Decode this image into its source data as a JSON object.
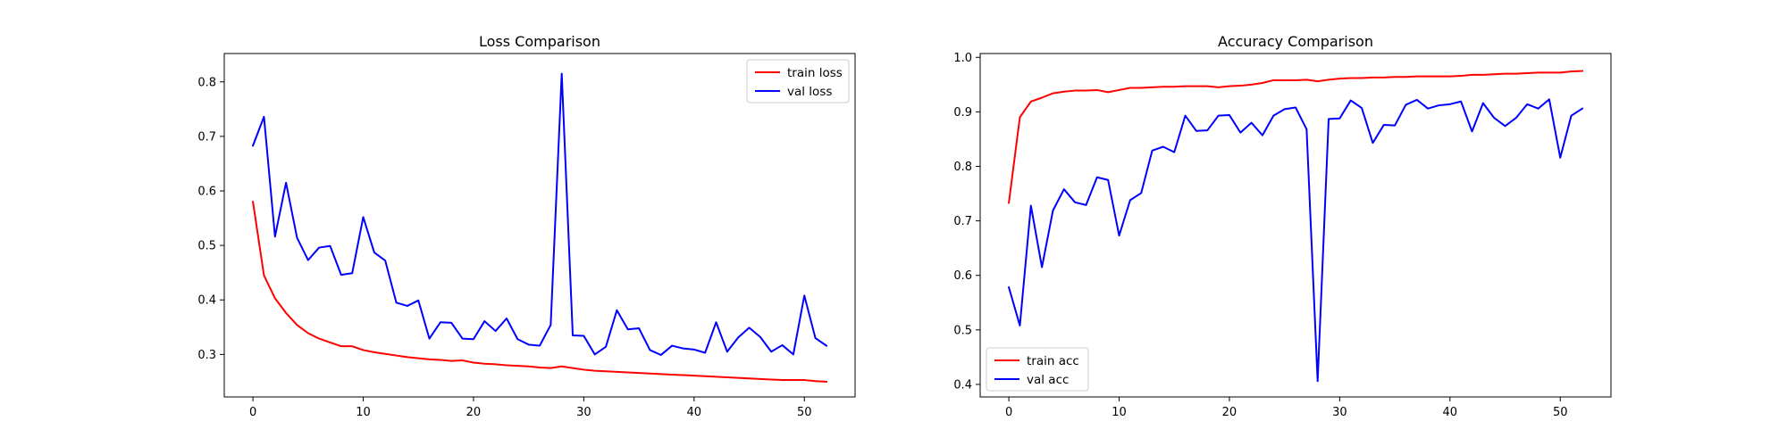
{
  "chart_data": [
    {
      "type": "line",
      "title": "Loss Comparison",
      "xlabel": "",
      "ylabel": "",
      "xlim": [
        -2.6,
        54.6
      ],
      "ylim": [
        0.222,
        0.852
      ],
      "xticks": [
        0,
        10,
        20,
        30,
        40,
        50
      ],
      "yticks": [
        0.3,
        0.4,
        0.5,
        0.6,
        0.7,
        0.8
      ],
      "legend_position": "top-right",
      "grid": false,
      "series": [
        {
          "name": "train loss",
          "color": "#ff0000",
          "values": [
            0.58,
            0.445,
            0.403,
            0.376,
            0.354,
            0.339,
            0.329,
            0.322,
            0.315,
            0.315,
            0.308,
            0.304,
            0.301,
            0.298,
            0.295,
            0.293,
            0.291,
            0.29,
            0.288,
            0.289,
            0.285,
            0.283,
            0.282,
            0.28,
            0.279,
            0.278,
            0.276,
            0.275,
            0.278,
            0.275,
            0.272,
            0.27,
            0.269,
            0.268,
            0.267,
            0.266,
            0.265,
            0.264,
            0.263,
            0.262,
            0.261,
            0.26,
            0.259,
            0.258,
            0.257,
            0.256,
            0.255,
            0.254,
            0.253,
            0.253,
            0.253,
            0.251,
            0.25
          ]
        },
        {
          "name": "val loss",
          "color": "#0000ff",
          "values": [
            0.683,
            0.736,
            0.516,
            0.615,
            0.514,
            0.473,
            0.496,
            0.499,
            0.446,
            0.449,
            0.552,
            0.487,
            0.472,
            0.395,
            0.389,
            0.399,
            0.329,
            0.359,
            0.358,
            0.329,
            0.328,
            0.361,
            0.343,
            0.366,
            0.328,
            0.318,
            0.316,
            0.354,
            0.815,
            0.335,
            0.334,
            0.3,
            0.314,
            0.381,
            0.346,
            0.348,
            0.308,
            0.299,
            0.316,
            0.311,
            0.309,
            0.303,
            0.359,
            0.305,
            0.331,
            0.349,
            0.332,
            0.305,
            0.317,
            0.3,
            0.408,
            0.33,
            0.316
          ]
        }
      ]
    },
    {
      "type": "line",
      "title": "Accuracy Comparison",
      "xlabel": "",
      "ylabel": "",
      "xlim": [
        -2.6,
        54.6
      ],
      "ylim": [
        0.377,
        1.007
      ],
      "xticks": [
        0,
        10,
        20,
        30,
        40,
        50
      ],
      "yticks": [
        0.4,
        0.5,
        0.6,
        0.7,
        0.8,
        0.9,
        1.0
      ],
      "legend_position": "bottom-left",
      "grid": false,
      "series": [
        {
          "name": "train acc",
          "color": "#ff0000",
          "values": [
            0.733,
            0.89,
            0.919,
            0.926,
            0.934,
            0.937,
            0.939,
            0.939,
            0.94,
            0.936,
            0.94,
            0.944,
            0.944,
            0.945,
            0.946,
            0.946,
            0.947,
            0.947,
            0.947,
            0.945,
            0.947,
            0.948,
            0.95,
            0.953,
            0.958,
            0.958,
            0.958,
            0.959,
            0.956,
            0.959,
            0.961,
            0.962,
            0.962,
            0.963,
            0.963,
            0.964,
            0.964,
            0.965,
            0.965,
            0.965,
            0.965,
            0.966,
            0.968,
            0.968,
            0.969,
            0.97,
            0.97,
            0.971,
            0.972,
            0.972,
            0.972,
            0.974,
            0.975
          ]
        },
        {
          "name": "val acc",
          "color": "#0000ff",
          "values": [
            0.578,
            0.508,
            0.728,
            0.615,
            0.719,
            0.758,
            0.734,
            0.729,
            0.78,
            0.775,
            0.673,
            0.738,
            0.751,
            0.829,
            0.836,
            0.826,
            0.893,
            0.865,
            0.866,
            0.893,
            0.894,
            0.862,
            0.88,
            0.857,
            0.893,
            0.905,
            0.908,
            0.868,
            0.406,
            0.887,
            0.888,
            0.921,
            0.907,
            0.843,
            0.876,
            0.875,
            0.913,
            0.922,
            0.906,
            0.912,
            0.914,
            0.919,
            0.864,
            0.916,
            0.889,
            0.874,
            0.889,
            0.914,
            0.906,
            0.923,
            0.816,
            0.893,
            0.906
          ]
        }
      ]
    }
  ]
}
